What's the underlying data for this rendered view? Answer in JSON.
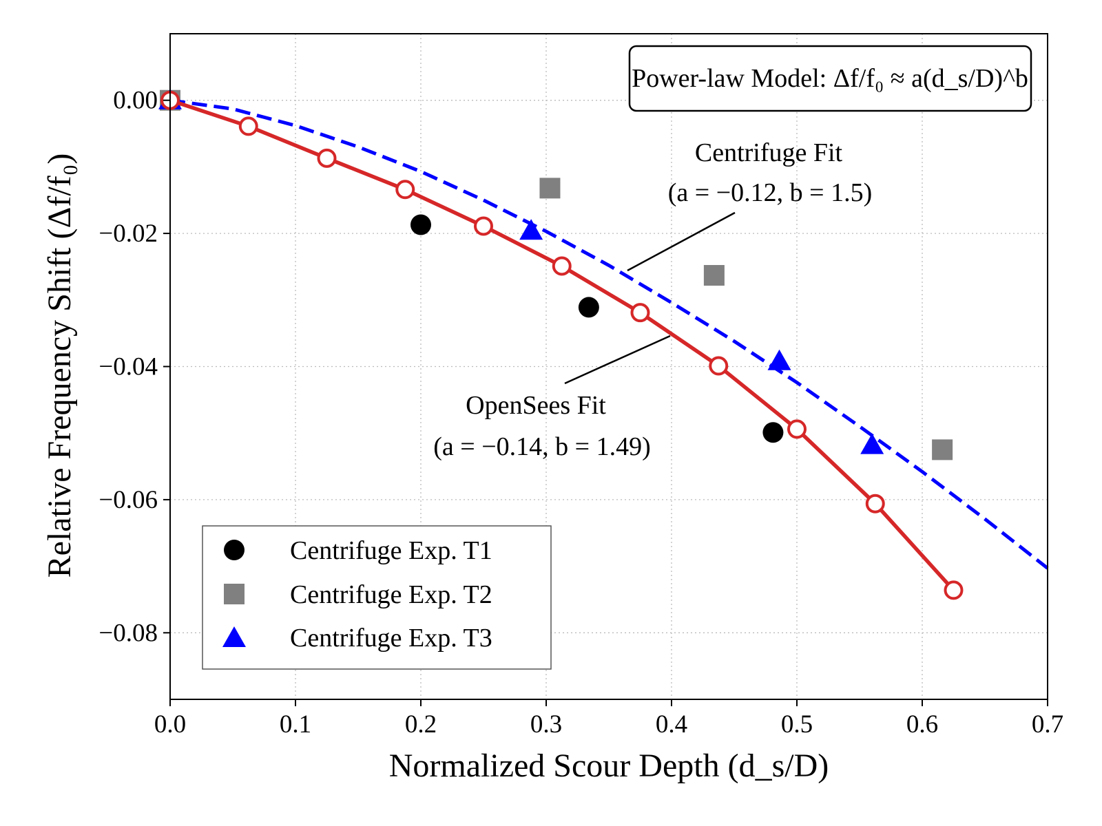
{
  "chart_data": {
    "type": "scatter",
    "xlabel": "Normalized Scour Depth (d_s/D)",
    "ylabel": "Relative Frequency  Shift (Δf/f₀)",
    "xlim": [
      0.0,
      0.7
    ],
    "ylim": [
      -0.09,
      0.01
    ],
    "xticks": [
      "0.0",
      "0.1",
      "0.2",
      "0.3",
      "0.4",
      "0.5",
      "0.6",
      "0.7"
    ],
    "xtick_values": [
      0,
      0.1,
      0.2,
      0.3,
      0.4,
      0.5,
      0.6,
      0.7
    ],
    "yticks": [
      "0.00",
      "−0.02",
      "−0.04",
      "−0.06",
      "−0.08"
    ],
    "ytick_values": [
      0,
      -0.02,
      -0.04,
      -0.06,
      -0.08
    ],
    "grid": true,
    "legend_placement": "lower-left",
    "formula_box": "Power-law Model: Δf/f₀ ≈ a(d_s/D)^b",
    "annotations": [
      {
        "line1": "Centrifuge Fit",
        "line2": "(a = −0.12, b = 1.5)"
      },
      {
        "line1": "OpenSees Fit",
        "line2": "(a = −0.14, b = 1.49)"
      }
    ],
    "series": [
      {
        "name": "Centrifuge Exp. T1",
        "marker": "circle",
        "color": "#000000",
        "x": [
          0.2,
          0.334,
          0.481
        ],
        "y": [
          -0.0187,
          -0.0311,
          -0.0499
        ]
      },
      {
        "name": "Centrifuge Exp. T2",
        "marker": "square",
        "color": "#808080",
        "x": [
          0.0,
          0.303,
          0.434,
          0.616
        ],
        "y": [
          0.0,
          -0.0132,
          -0.0263,
          -0.0525
        ]
      },
      {
        "name": "Centrifuge Exp. T3",
        "marker": "triangle",
        "color": "#0000ff",
        "x": [
          0.0,
          0.288,
          0.486,
          0.56
        ],
        "y": [
          0.0,
          -0.0196,
          -0.0392,
          -0.0518
        ]
      },
      {
        "marker": "open-circle-line",
        "color": "#d62728",
        "x": [
          0,
          0.0625,
          0.125,
          0.1875,
          0.25,
          0.3125,
          0.375,
          0.4375,
          0.5,
          0.5625,
          0.625
        ],
        "y": [
          0,
          -0.0039,
          -0.0087,
          -0.0134,
          -0.0189,
          -0.0249,
          -0.0319,
          -0.0399,
          -0.0494,
          -0.0606,
          -0.0736
        ]
      },
      {
        "marker": "dashed-line",
        "color": "#0000ff",
        "x": [
          0,
          0.05,
          0.1,
          0.15,
          0.2,
          0.25,
          0.3,
          0.35,
          0.4,
          0.45,
          0.5,
          0.55,
          0.6,
          0.65,
          0.7
        ],
        "y": [
          0,
          -0.0013,
          -0.0038,
          -0.007,
          -0.0107,
          -0.015,
          -0.0197,
          -0.0248,
          -0.0304,
          -0.0362,
          -0.0424,
          -0.049,
          -0.0558,
          -0.0629,
          -0.0703
        ]
      }
    ]
  }
}
